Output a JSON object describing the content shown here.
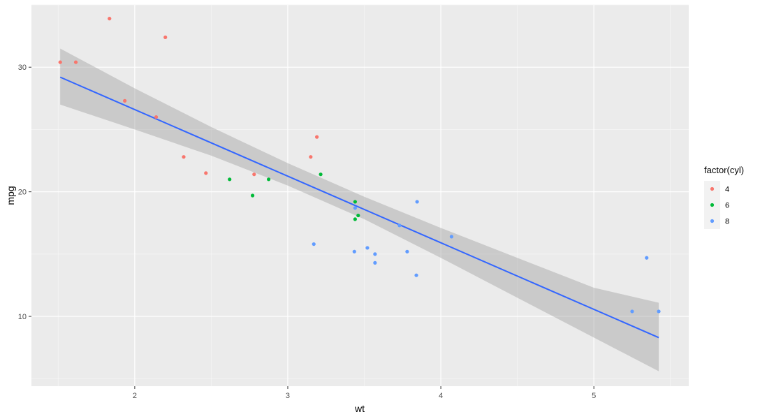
{
  "chart_data": {
    "type": "scatter",
    "title": "",
    "xlabel": "wt",
    "ylabel": "mpg",
    "xlim": [
      1.325,
      5.62
    ],
    "ylim": [
      4.4,
      35.0
    ],
    "x_ticks": [
      2,
      3,
      4,
      5
    ],
    "y_ticks": [
      10,
      20,
      30
    ],
    "x_tick_labels": [
      "2",
      "3",
      "4",
      "5"
    ],
    "y_tick_labels": [
      "10",
      "20",
      "30"
    ],
    "grid": true,
    "legend": {
      "title": "factor(cyl)",
      "placement": "right",
      "entries": [
        {
          "label": "4",
          "color": "#F8766D"
        },
        {
          "label": "6",
          "color": "#00BA38"
        },
        {
          "label": "8",
          "color": "#619CFF"
        }
      ]
    },
    "series": [
      {
        "name": "4",
        "color": "#F8766D",
        "points": [
          {
            "x": 1.513,
            "y": 30.4
          },
          {
            "x": 1.615,
            "y": 30.4
          },
          {
            "x": 1.835,
            "y": 33.9
          },
          {
            "x": 1.935,
            "y": 27.3
          },
          {
            "x": 2.14,
            "y": 26.0
          },
          {
            "x": 2.2,
            "y": 32.4
          },
          {
            "x": 2.32,
            "y": 22.8
          },
          {
            "x": 2.465,
            "y": 21.5
          },
          {
            "x": 2.78,
            "y": 21.4
          },
          {
            "x": 3.15,
            "y": 22.8
          },
          {
            "x": 3.19,
            "y": 24.4
          }
        ]
      },
      {
        "name": "6",
        "color": "#00BA38",
        "points": [
          {
            "x": 2.62,
            "y": 21.0
          },
          {
            "x": 2.77,
            "y": 19.7
          },
          {
            "x": 2.875,
            "y": 21.0
          },
          {
            "x": 3.215,
            "y": 21.4
          },
          {
            "x": 3.44,
            "y": 19.2
          },
          {
            "x": 3.44,
            "y": 17.8
          },
          {
            "x": 3.46,
            "y": 18.1
          }
        ]
      },
      {
        "name": "8",
        "color": "#619CFF",
        "points": [
          {
            "x": 3.17,
            "y": 15.8
          },
          {
            "x": 3.435,
            "y": 15.2
          },
          {
            "x": 3.44,
            "y": 18.7
          },
          {
            "x": 3.52,
            "y": 15.5
          },
          {
            "x": 3.57,
            "y": 15.0
          },
          {
            "x": 3.57,
            "y": 14.3
          },
          {
            "x": 3.73,
            "y": 17.3
          },
          {
            "x": 3.78,
            "y": 15.2
          },
          {
            "x": 3.84,
            "y": 13.3
          },
          {
            "x": 3.845,
            "y": 19.2
          },
          {
            "x": 4.07,
            "y": 16.4
          },
          {
            "x": 5.25,
            "y": 10.4
          },
          {
            "x": 5.345,
            "y": 14.7
          },
          {
            "x": 5.424,
            "y": 10.4
          }
        ]
      }
    ],
    "smooth": {
      "method": "lm",
      "color": "#3366FF",
      "band_color": "#999999",
      "line": [
        {
          "x": 1.513,
          "y": 29.2
        },
        {
          "x": 5.424,
          "y": 8.3
        }
      ],
      "band": [
        {
          "x": 1.513,
          "lower": 27.0,
          "upper": 31.5
        },
        {
          "x": 2.0,
          "lower": 25.0,
          "upper": 28.3
        },
        {
          "x": 2.5,
          "lower": 22.9,
          "upper": 25.2
        },
        {
          "x": 3.0,
          "lower": 20.5,
          "upper": 22.3
        },
        {
          "x": 3.5,
          "lower": 17.8,
          "upper": 19.6
        },
        {
          "x": 4.0,
          "lower": 14.7,
          "upper": 17.1
        },
        {
          "x": 4.5,
          "lower": 11.5,
          "upper": 14.7
        },
        {
          "x": 5.0,
          "lower": 8.3,
          "upper": 12.3
        },
        {
          "x": 5.424,
          "lower": 5.6,
          "upper": 11.1
        }
      ]
    }
  }
}
